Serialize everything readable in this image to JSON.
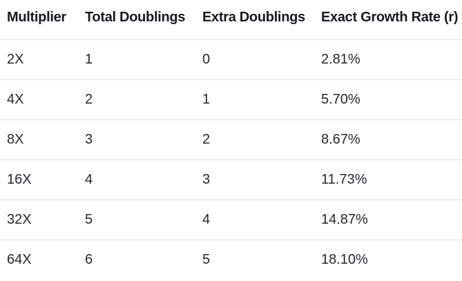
{
  "table": {
    "columns": [
      "Multiplier",
      "Total Doublings",
      "Extra Doublings",
      "Exact Growth Rate (r)"
    ],
    "rows": [
      [
        "2X",
        "1",
        "0",
        "2.81%"
      ],
      [
        "4X",
        "2",
        "1",
        "5.70%"
      ],
      [
        "8X",
        "3",
        "2",
        "8.67%"
      ],
      [
        "16X",
        "4",
        "3",
        "11.73%"
      ],
      [
        "32X",
        "5",
        "4",
        "14.87%"
      ],
      [
        "64X",
        "6",
        "5",
        "18.10%"
      ]
    ]
  },
  "chart_data": {
    "type": "table",
    "title": "",
    "columns": [
      "Multiplier",
      "Total Doublings",
      "Extra Doublings",
      "Exact Growth Rate (r)"
    ],
    "rows": [
      [
        "2X",
        "1",
        "0",
        "2.81%"
      ],
      [
        "4X",
        "2",
        "1",
        "5.70%"
      ],
      [
        "8X",
        "3",
        "2",
        "8.67%"
      ],
      [
        "16X",
        "4",
        "3",
        "11.73%"
      ],
      [
        "32X",
        "5",
        "4",
        "14.87%"
      ],
      [
        "64X",
        "6",
        "5",
        "18.10%"
      ]
    ],
    "series": [
      {
        "name": "Multiplier",
        "values": [
          "2X",
          "4X",
          "8X",
          "16X",
          "32X",
          "64X"
        ]
      },
      {
        "name": "Total Doublings",
        "values": [
          1,
          2,
          3,
          4,
          5,
          6
        ]
      },
      {
        "name": "Extra Doublings",
        "values": [
          0,
          1,
          2,
          3,
          4,
          5
        ]
      },
      {
        "name": "Exact Growth Rate (r) %",
        "values": [
          2.81,
          5.7,
          8.67,
          11.73,
          14.87,
          18.1
        ]
      }
    ]
  },
  "colors": {
    "background": "#ffffff",
    "header_text": "#191a21",
    "body_text": "#26272e",
    "divider": "#dfe1e4"
  }
}
